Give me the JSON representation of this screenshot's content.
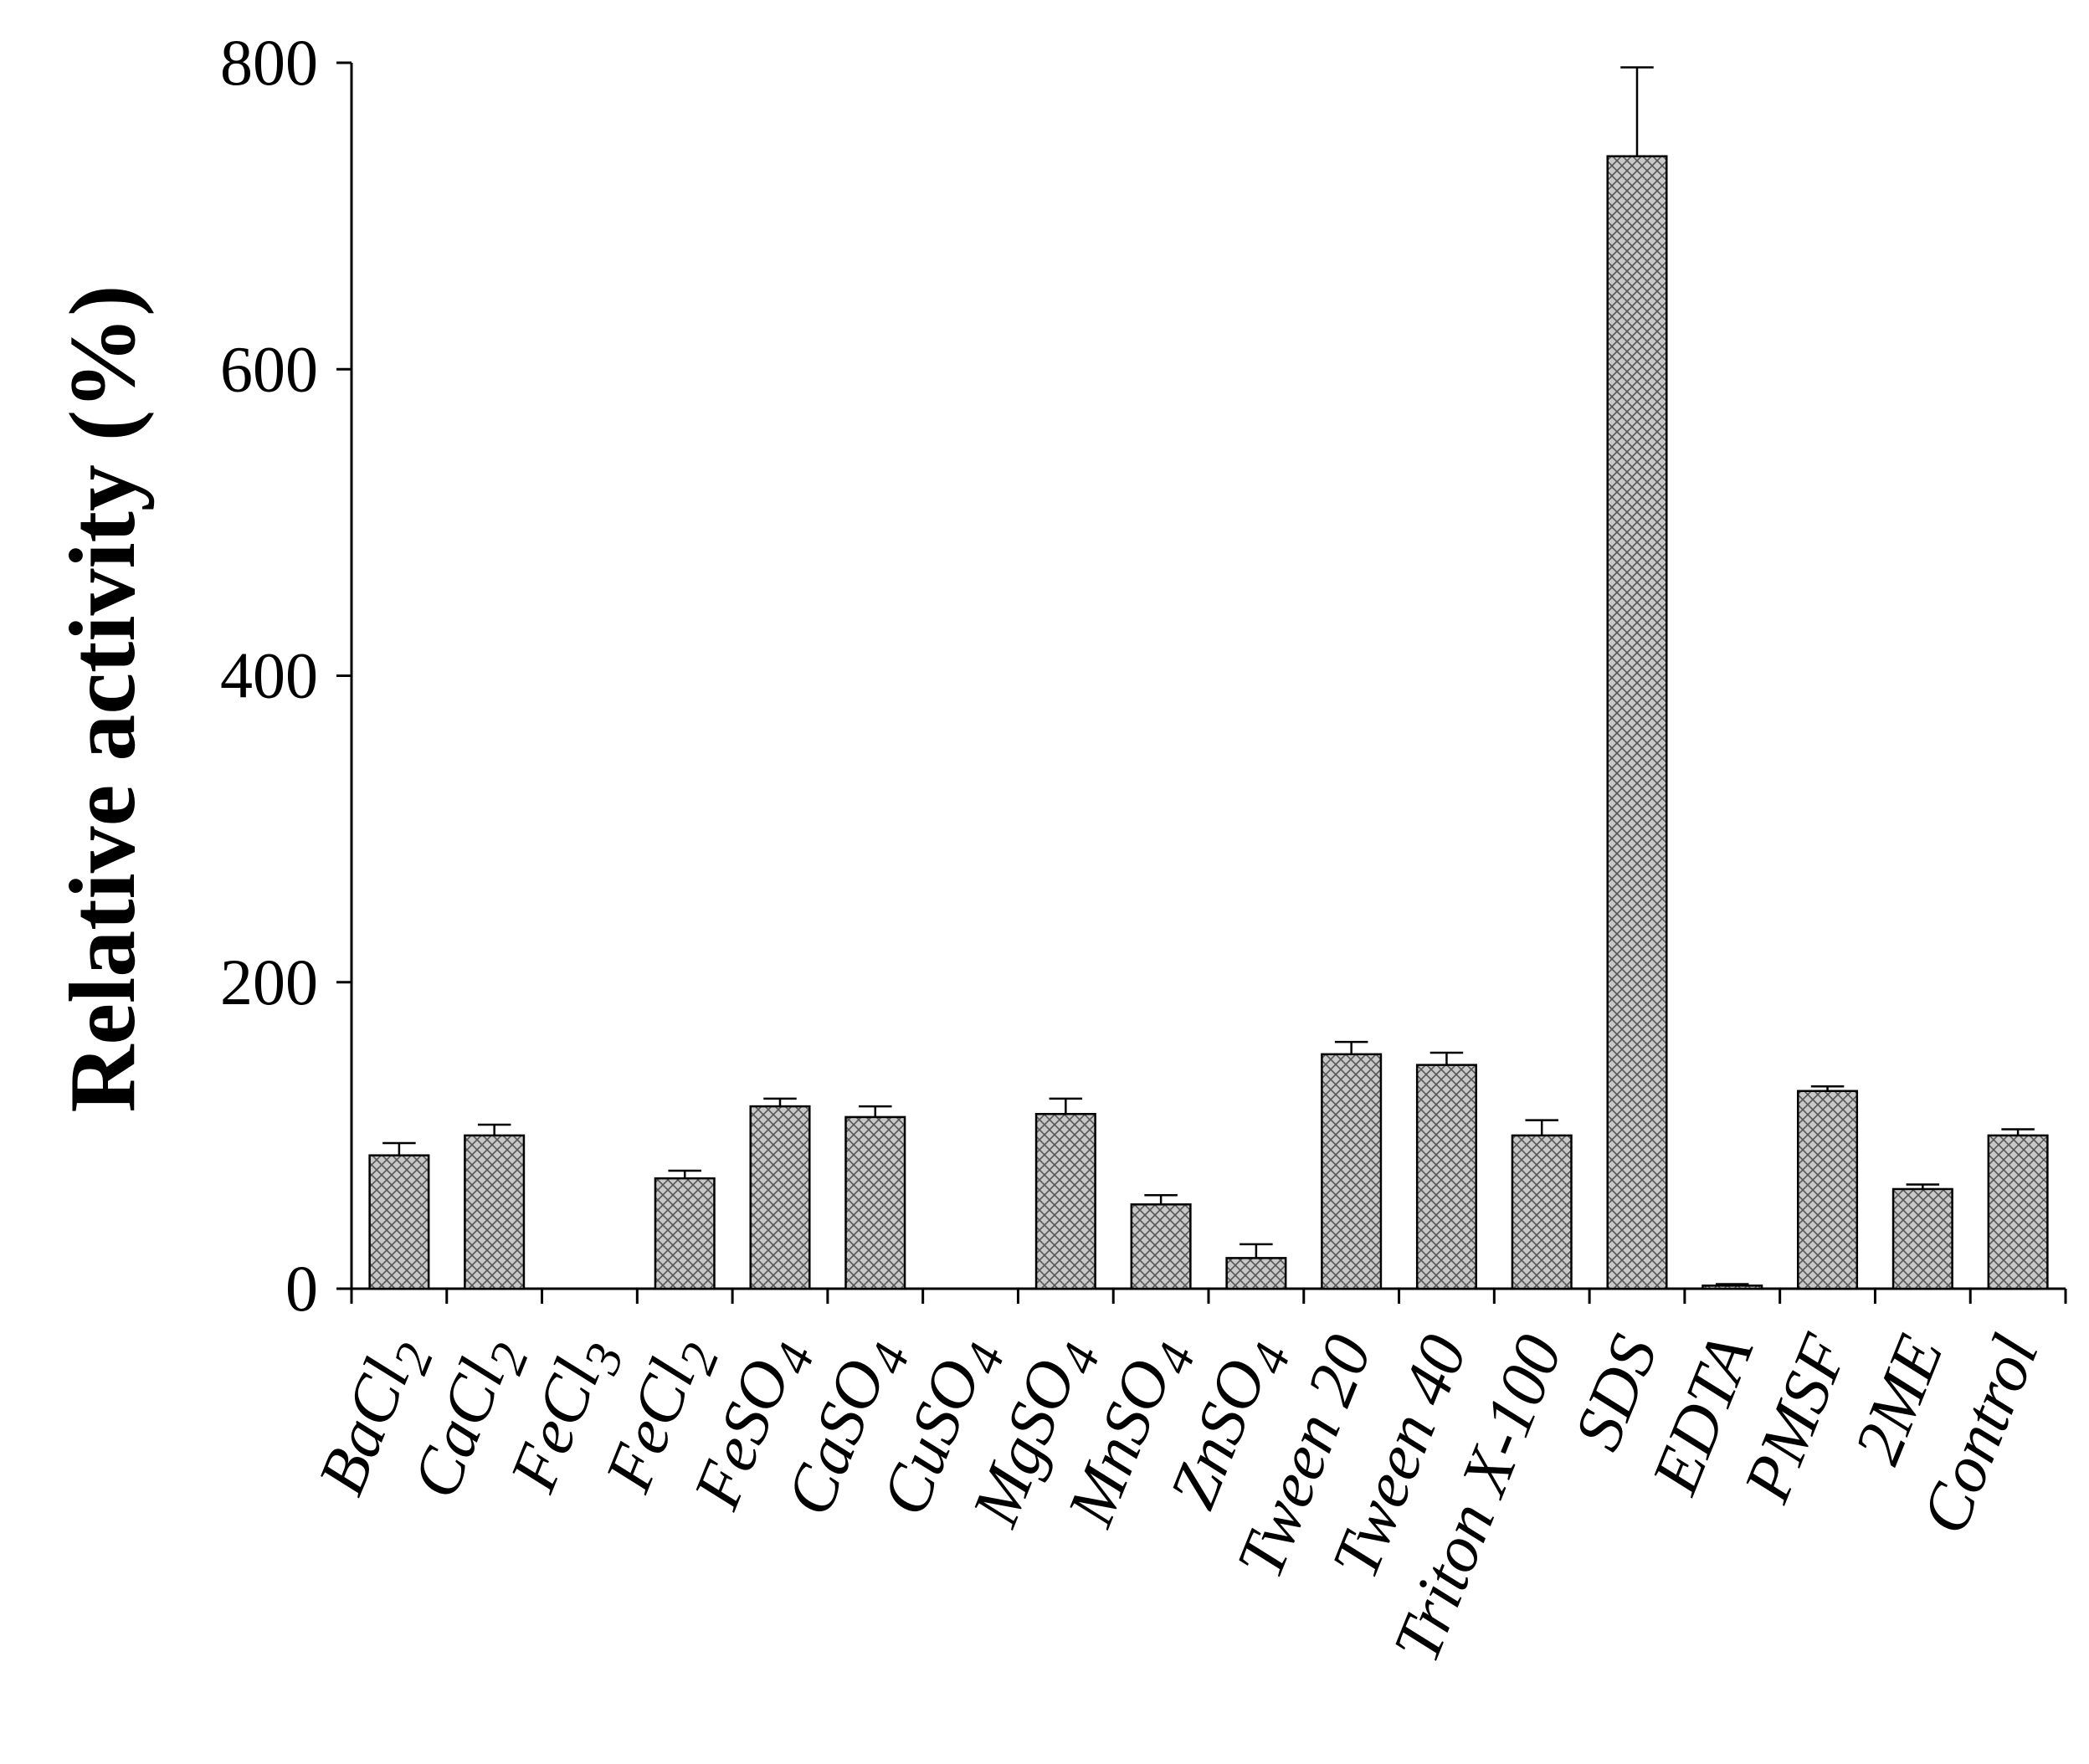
{
  "chart_data": {
    "type": "bar",
    "title": "",
    "xlabel": "",
    "ylabel": "Relative activity (%)",
    "ylim": [
      0,
      800
    ],
    "yticks": [
      0,
      200,
      400,
      600,
      800
    ],
    "grid": false,
    "legend": "none",
    "bar_fill": "#c8c8c8",
    "bar_hatch": "cross-hatch",
    "categories": [
      {
        "base": "BaCl",
        "sub": "2"
      },
      {
        "base": "CaCl",
        "sub": "2"
      },
      {
        "base": "FeCl",
        "sub": "3"
      },
      {
        "base": "FeCl",
        "sub": "2"
      },
      {
        "base": "FeSO",
        "sub": "4"
      },
      {
        "base": "CaSO",
        "sub": "4"
      },
      {
        "base": "CuSO",
        "sub": "4"
      },
      {
        "base": "MgSO",
        "sub": "4"
      },
      {
        "base": "MnSO",
        "sub": "4"
      },
      {
        "base": "ZnSO",
        "sub": "4"
      },
      {
        "base": "Tween 20",
        "sub": ""
      },
      {
        "base": "Tween 40",
        "sub": ""
      },
      {
        "base": "Triton X-100",
        "sub": ""
      },
      {
        "base": "SDS",
        "sub": ""
      },
      {
        "base": "EDTA",
        "sub": ""
      },
      {
        "base": "PMSF",
        "sub": ""
      },
      {
        "base": "2ME",
        "sub": ""
      },
      {
        "base": "Control",
        "sub": ""
      }
    ],
    "values": [
      87,
      100,
      0,
      72,
      119,
      112,
      0,
      114,
      55,
      20,
      153,
      146,
      100,
      739,
      2,
      129,
      65,
      100
    ],
    "errors": [
      8,
      7,
      0,
      5,
      5,
      7,
      0,
      10,
      6,
      9,
      8,
      8,
      10,
      58,
      1,
      3,
      3,
      4
    ]
  }
}
